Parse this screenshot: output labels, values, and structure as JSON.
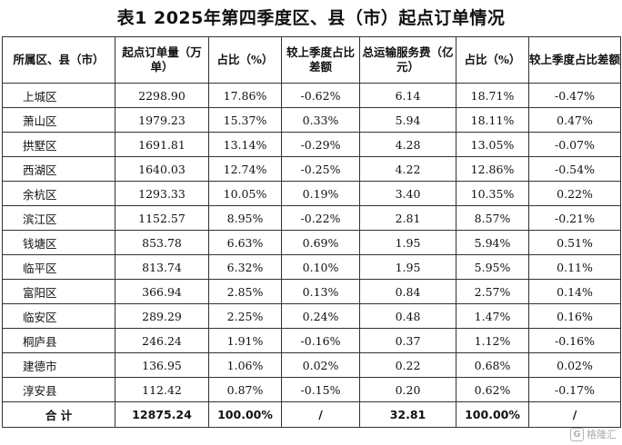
{
  "title": "表1 2025年第四季度区、县（市）起点订单情况",
  "columns": [
    "所属区、县（市）",
    "起点订单量（万单）",
    "占比（%）",
    "较上季度占比差额",
    "总运输服务费（亿元）",
    "占比（%）",
    "较上季度占比差额"
  ],
  "rows": [
    [
      "上城区",
      "2298.90",
      "17.86%",
      "-0.62%",
      "6.14",
      "18.71%",
      "-0.47%"
    ],
    [
      "萧山区",
      "1979.23",
      "15.37%",
      "0.33%",
      "5.94",
      "18.11%",
      "0.47%"
    ],
    [
      "拱墅区",
      "1691.81",
      "13.14%",
      "-0.29%",
      "4.28",
      "13.05%",
      "-0.07%"
    ],
    [
      "西湖区",
      "1640.03",
      "12.74%",
      "-0.25%",
      "4.22",
      "12.86%",
      "-0.54%"
    ],
    [
      "余杭区",
      "1293.33",
      "10.05%",
      "0.19%",
      "3.40",
      "10.35%",
      "0.22%"
    ],
    [
      "滨江区",
      "1152.57",
      "8.95%",
      "-0.22%",
      "2.81",
      "8.57%",
      "-0.21%"
    ],
    [
      "钱塘区",
      "853.78",
      "6.63%",
      "0.69%",
      "1.95",
      "5.94%",
      "0.51%"
    ],
    [
      "临平区",
      "813.74",
      "6.32%",
      "0.10%",
      "1.95",
      "5.95%",
      "0.11%"
    ],
    [
      "富阳区",
      "366.94",
      "2.85%",
      "0.13%",
      "0.84",
      "2.57%",
      "0.14%"
    ],
    [
      "临安区",
      "289.29",
      "2.25%",
      "0.24%",
      "0.48",
      "1.47%",
      "0.16%"
    ],
    [
      "桐庐县",
      "246.24",
      "1.91%",
      "-0.16%",
      "0.37",
      "1.12%",
      "-0.16%"
    ],
    [
      "建德市",
      "136.95",
      "1.06%",
      "0.02%",
      "0.22",
      "0.68%",
      "0.02%"
    ],
    [
      "淳安县",
      "112.42",
      "0.87%",
      "-0.15%",
      "0.20",
      "0.62%",
      "-0.17%"
    ]
  ],
  "total": [
    "合 计",
    "12875.24",
    "100.00%",
    "/",
    "32.81",
    "100.00%",
    "/"
  ],
  "watermark": {
    "logo_char": "G",
    "text": "格隆汇"
  }
}
